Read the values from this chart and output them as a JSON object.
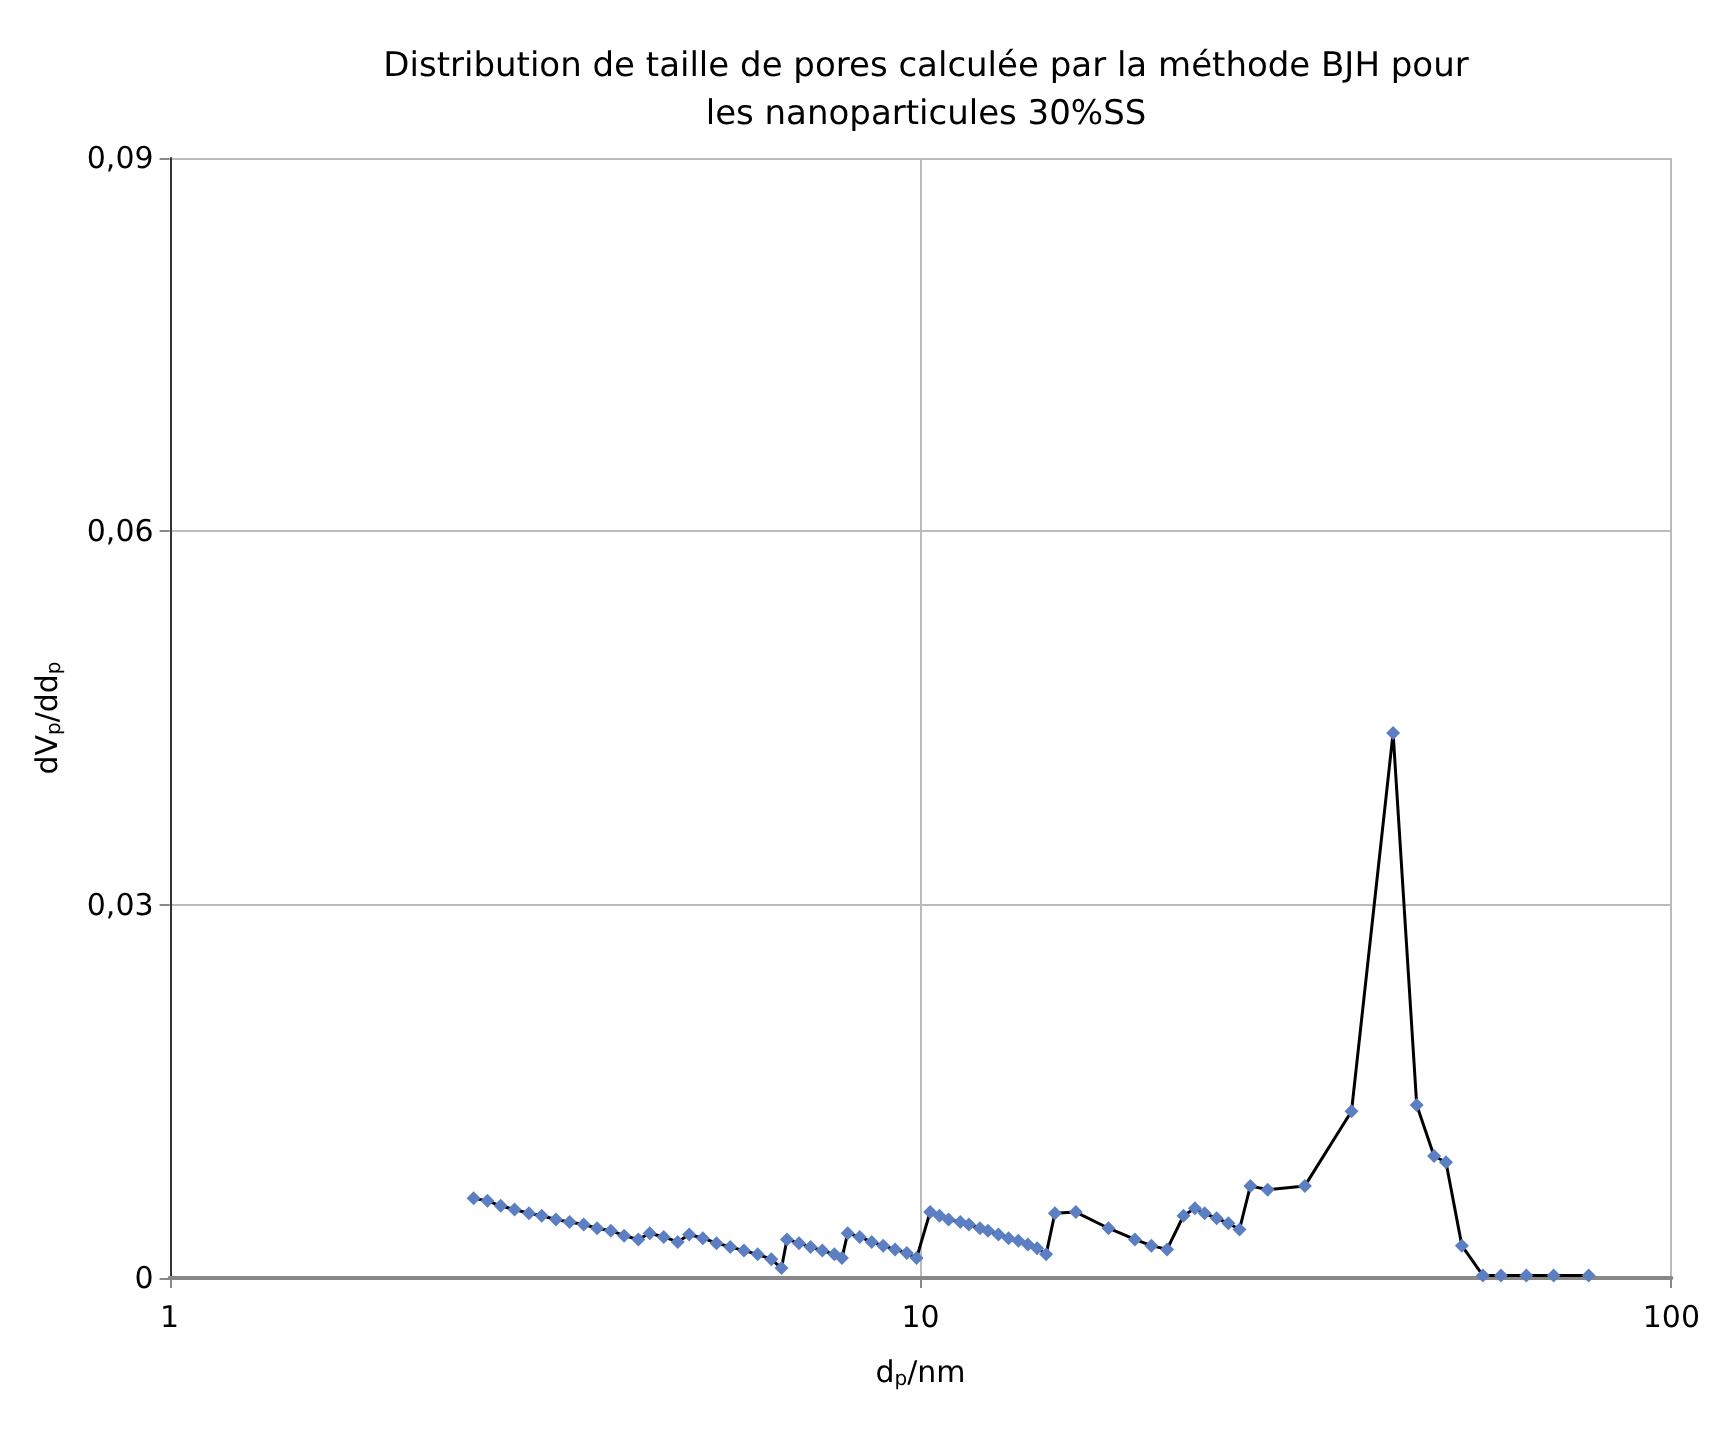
{
  "chart_data": {
    "type": "line",
    "title": "Distribution de taille de pores calculée par la méthode BJH pour\nles nanoparticules 30%SS",
    "xlabel": "d$_{p}$/nm",
    "ylabel": "dV$_{p}$/dd$_{p}$",
    "log": "x",
    "xlim": [
      1,
      100
    ],
    "xticks": [
      1,
      10,
      100
    ],
    "ylim": [
      0,
      0.09
    ],
    "yticks": [
      0,
      {
        "value": 0.03,
        "label": "0,03"
      },
      {
        "value": 0.06,
        "label": "0,06"
      },
      {
        "value": 0.09,
        "label": "0,09"
      }
    ],
    "grid": true,
    "marker": "diamond",
    "line_style": "solid",
    "series": [
      {
        "color": "#5b7fc2",
        "x": [
          2.54,
          2.65,
          2.76,
          2.88,
          3.01,
          3.13,
          3.27,
          3.41,
          3.56,
          3.71,
          3.87,
          4.03,
          4.21,
          4.36,
          4.55,
          4.75,
          4.92,
          5.13,
          5.35,
          5.58,
          5.82,
          6.07,
          6.33,
          6.53,
          6.64,
          6.89,
          7.14,
          7.4,
          7.68,
          7.86,
          8.0,
          8.3,
          8.61,
          8.92,
          9.25,
          9.59,
          9.88,
          10.3,
          10.6,
          10.9,
          11.3,
          11.6,
          12.0,
          12.3,
          12.7,
          13.1,
          13.5,
          13.9,
          14.3,
          14.7,
          15.1,
          16.1,
          17.8,
          19.3,
          20.3,
          21.3,
          22.4,
          23.2,
          23.9,
          24.8,
          25.7,
          26.6,
          27.5,
          29.0,
          32.5,
          37.5,
          42.6,
          45.8,
          48.3,
          50.1,
          52.6,
          56.1,
          59.3,
          64.1,
          69.7,
          77.6
        ],
        "values": [
          0.0064,
          0.0062,
          0.0058,
          0.0055,
          0.0052,
          0.005,
          0.0047,
          0.0045,
          0.0043,
          0.004,
          0.0038,
          0.0034,
          0.0031,
          0.0036,
          0.0033,
          0.0029,
          0.0035,
          0.0032,
          0.0028,
          0.0025,
          0.0022,
          0.0019,
          0.0015,
          0.0008,
          0.0031,
          0.0028,
          0.0025,
          0.0022,
          0.0019,
          0.0016,
          0.0036,
          0.0033,
          0.0029,
          0.0026,
          0.0023,
          0.002,
          0.0016,
          0.0053,
          0.005,
          0.0047,
          0.0045,
          0.0043,
          0.004,
          0.0038,
          0.0035,
          0.0032,
          0.003,
          0.0027,
          0.0024,
          0.0019,
          0.0052,
          0.0053,
          0.004,
          0.0031,
          0.0026,
          0.0023,
          0.005,
          0.0056,
          0.0052,
          0.0048,
          0.0044,
          0.0039,
          0.0074,
          0.0071,
          0.0074,
          0.0134,
          0.0438,
          0.0139,
          0.0098,
          0.0093,
          0.0026,
          0.0002,
          0.0002,
          0.0002,
          0.0002,
          0.0002
        ]
      }
    ]
  }
}
